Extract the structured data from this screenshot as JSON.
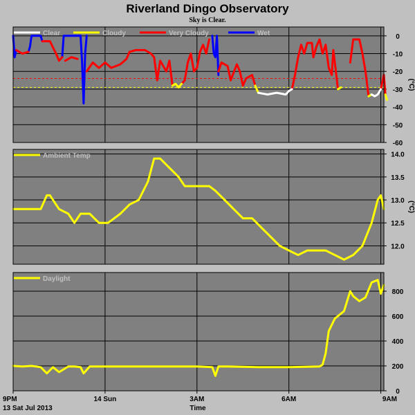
{
  "page": {
    "title": "Riverland Dingo Observatory",
    "subtitle": "Sky is Clear."
  },
  "x_axis": {
    "label": "Time",
    "date_label": "13 Sat Jul 2013",
    "ticks": [
      {
        "label": "9PM",
        "hours": 0
      },
      {
        "label": "14 Sun",
        "hours": 3
      },
      {
        "label": "3AM",
        "hours": 6
      },
      {
        "label": "6AM",
        "hours": 9
      },
      {
        "label": "9AM",
        "hours": 12
      }
    ],
    "range_hours": [
      0,
      12.1
    ]
  },
  "colors": {
    "background": "#c0c0c0",
    "plot_bg": "#808080",
    "grid": "#000000",
    "clear": "#ffffff",
    "cloudy": "#ffff00",
    "very_cloudy": "#ff0000",
    "wet": "#0000ff",
    "ambient": "#ffff00",
    "daylight": "#ffff00"
  },
  "chart_data": [
    {
      "type": "line",
      "panel": "sky",
      "ylabel": "(°C)",
      "ylim": [
        -60,
        5
      ],
      "yticks": [
        0,
        -10,
        -20,
        -30,
        -40,
        -50,
        -60
      ],
      "legend": [
        "Clear",
        "Cloudy",
        "Very Cloudy",
        "Wet"
      ],
      "thresholds": [
        {
          "value": -24,
          "color": "#ff0000"
        },
        {
          "value": -29,
          "color": "#ffff00"
        }
      ],
      "series": [
        {
          "name": "Wet",
          "color": "#0000ff",
          "segments": [
            [
              [
                0,
                0
              ],
              [
                0.05,
                -12
              ],
              [
                0.1,
                -8
              ]
            ],
            [
              [
                0.5,
                -9
              ],
              [
                0.55,
                -6
              ],
              [
                0.6,
                0
              ],
              [
                0.9,
                0
              ],
              [
                0.95,
                -3
              ]
            ],
            [
              [
                1.6,
                -12
              ],
              [
                1.65,
                0
              ],
              [
                1.7,
                0
              ],
              [
                2.2,
                0
              ],
              [
                2.25,
                -15
              ],
              [
                2.3,
                -38
              ],
              [
                2.35,
                -10
              ],
              [
                2.4,
                0
              ]
            ],
            [
              [
                6.5,
                0
              ],
              [
                6.55,
                -10
              ],
              [
                6.6,
                -12
              ],
              [
                6.65,
                0
              ],
              [
                6.7,
                -22
              ]
            ]
          ]
        },
        {
          "name": "Very Cloudy",
          "color": "#ff0000",
          "segments": [
            [
              [
                0.1,
                -8
              ],
              [
                0.3,
                -10
              ],
              [
                0.5,
                -9
              ]
            ],
            [
              [
                0.95,
                -3
              ],
              [
                1.2,
                -3
              ],
              [
                1.4,
                -10
              ],
              [
                1.5,
                -14
              ],
              [
                1.6,
                -12
              ]
            ],
            [
              [
                1.7,
                -14
              ],
              [
                1.9,
                -12
              ],
              [
                2.1,
                -13
              ]
            ],
            [
              [
                2.4,
                -20
              ],
              [
                2.6,
                -15
              ],
              [
                2.8,
                -18
              ],
              [
                3.0,
                -15
              ],
              [
                3.2,
                -18
              ],
              [
                3.5,
                -16
              ],
              [
                3.7,
                -13
              ],
              [
                3.8,
                -9
              ],
              [
                4.0,
                -8
              ],
              [
                4.3,
                -8
              ],
              [
                4.5,
                -10
              ],
              [
                4.6,
                -12
              ],
              [
                4.7,
                -25
              ],
              [
                4.8,
                -14
              ],
              [
                5.0,
                -20
              ],
              [
                5.1,
                -14
              ],
              [
                5.2,
                -28
              ]
            ],
            [
              [
                5.5,
                -27
              ],
              [
                5.6,
                -25
              ],
              [
                5.7,
                -15
              ],
              [
                5.8,
                -10
              ],
              [
                5.9,
                -20
              ],
              [
                6.0,
                -18
              ],
              [
                6.1,
                -9
              ],
              [
                6.2,
                -5
              ],
              [
                6.3,
                -10
              ],
              [
                6.4,
                -2
              ]
            ],
            [
              [
                6.7,
                -20
              ],
              [
                6.8,
                -15
              ],
              [
                7.0,
                -17
              ],
              [
                7.1,
                -25
              ],
              [
                7.3,
                -16
              ],
              [
                7.4,
                -20
              ],
              [
                7.5,
                -28
              ],
              [
                7.6,
                -24
              ],
              [
                7.8,
                -22
              ],
              [
                7.9,
                -28
              ]
            ],
            [
              [
                9.1,
                -30
              ],
              [
                9.2,
                -22
              ],
              [
                9.3,
                -12
              ],
              [
                9.4,
                -5
              ],
              [
                9.5,
                -10
              ],
              [
                9.6,
                -4
              ],
              [
                9.75,
                -4
              ],
              [
                9.8,
                -12
              ],
              [
                9.9,
                -6
              ],
              [
                10.0,
                -2
              ],
              [
                10.1,
                -10
              ],
              [
                10.2,
                -5
              ],
              [
                10.3,
                -18
              ],
              [
                10.4,
                -22
              ],
              [
                10.45,
                -8
              ],
              [
                10.5,
                -15
              ],
              [
                10.6,
                -30
              ]
            ],
            [
              [
                11.0,
                -15
              ],
              [
                11.1,
                -2
              ],
              [
                11.3,
                -2
              ],
              [
                11.4,
                -10
              ],
              [
                11.5,
                -20
              ],
              [
                11.6,
                -34
              ]
            ],
            [
              [
                12.0,
                -30
              ],
              [
                12.1,
                -22
              ],
              [
                12.15,
                -33
              ]
            ]
          ]
        },
        {
          "name": "Cloudy",
          "color": "#ffff00",
          "segments": [
            [
              [
                5.2,
                -28
              ],
              [
                5.3,
                -27
              ],
              [
                5.4,
                -29
              ],
              [
                5.5,
                -27
              ]
            ],
            [
              [
                7.9,
                -28
              ],
              [
                8.0,
                -32
              ]
            ],
            [
              [
                10.6,
                -30
              ],
              [
                10.7,
                -29
              ]
            ],
            [
              [
                11.6,
                -34
              ],
              [
                11.7,
                -33
              ]
            ],
            [
              [
                12.15,
                -33
              ],
              [
                12.2,
                -36
              ]
            ]
          ]
        },
        {
          "name": "Clear",
          "color": "#ffffff",
          "segments": [
            [
              [
                8.0,
                -32
              ],
              [
                8.3,
                -33
              ],
              [
                8.6,
                -32
              ],
              [
                8.9,
                -33
              ],
              [
                9.0,
                -31
              ],
              [
                9.1,
                -30
              ]
            ],
            [
              [
                11.7,
                -33
              ],
              [
                11.8,
                -34
              ],
              [
                11.9,
                -33
              ],
              [
                12.0,
                -30
              ]
            ]
          ]
        }
      ]
    },
    {
      "type": "line",
      "panel": "ambient",
      "ylabel": "(°C)",
      "ylim": [
        11.6,
        14.1
      ],
      "yticks": [
        12.0,
        12.5,
        13.0,
        13.5,
        14.0
      ],
      "legend": [
        "Ambient Temp"
      ],
      "series": [
        {
          "name": "Ambient Temp",
          "color": "#ffff00",
          "x": [
            0,
            0.5,
            0.9,
            1.1,
            1.2,
            1.5,
            1.8,
            2.0,
            2.2,
            2.5,
            2.8,
            3.1,
            3.5,
            3.8,
            4.1,
            4.4,
            4.6,
            4.8,
            5.1,
            5.4,
            5.6,
            6.0,
            6.4,
            6.6,
            6.9,
            7.2,
            7.5,
            7.8,
            8.1,
            8.4,
            8.7,
            9.0,
            9.3,
            9.6,
            9.9,
            10.2,
            10.5,
            10.8,
            11.1,
            11.4,
            11.7,
            11.9,
            12.0,
            12.1
          ],
          "y": [
            12.8,
            12.8,
            12.8,
            13.1,
            13.1,
            12.8,
            12.7,
            12.5,
            12.7,
            12.7,
            12.5,
            12.5,
            12.7,
            12.9,
            13.0,
            13.4,
            13.9,
            13.9,
            13.7,
            13.5,
            13.3,
            13.3,
            13.3,
            13.2,
            13.0,
            12.8,
            12.6,
            12.6,
            12.4,
            12.2,
            12.0,
            11.9,
            11.8,
            11.9,
            11.9,
            11.9,
            11.8,
            11.7,
            11.8,
            12.0,
            12.5,
            13.0,
            13.1,
            12.8
          ]
        }
      ]
    },
    {
      "type": "line",
      "panel": "daylight",
      "ylabel": "",
      "ylim": [
        0,
        950
      ],
      "yticks": [
        0,
        200,
        400,
        600,
        800
      ],
      "legend": [
        "Daylight"
      ],
      "series": [
        {
          "name": "Daylight",
          "color": "#ffff00",
          "x": [
            0,
            0.3,
            0.6,
            0.9,
            1.1,
            1.3,
            1.5,
            1.8,
            2.0,
            2.2,
            2.3,
            2.5,
            3.0,
            3.5,
            4.0,
            5.0,
            6.0,
            6.5,
            6.6,
            6.7,
            7.0,
            8.0,
            9.0,
            10.0,
            10.1,
            10.2,
            10.3,
            10.5,
            10.8,
            11.0,
            11.1,
            11.3,
            11.5,
            11.7,
            11.9,
            12.0,
            12.1
          ],
          "y": [
            200,
            195,
            200,
            190,
            140,
            190,
            150,
            195,
            195,
            190,
            140,
            195,
            195,
            195,
            195,
            195,
            195,
            190,
            120,
            195,
            195,
            190,
            190,
            195,
            210,
            300,
            480,
            580,
            640,
            800,
            760,
            720,
            750,
            870,
            890,
            780,
            850
          ]
        }
      ]
    }
  ]
}
